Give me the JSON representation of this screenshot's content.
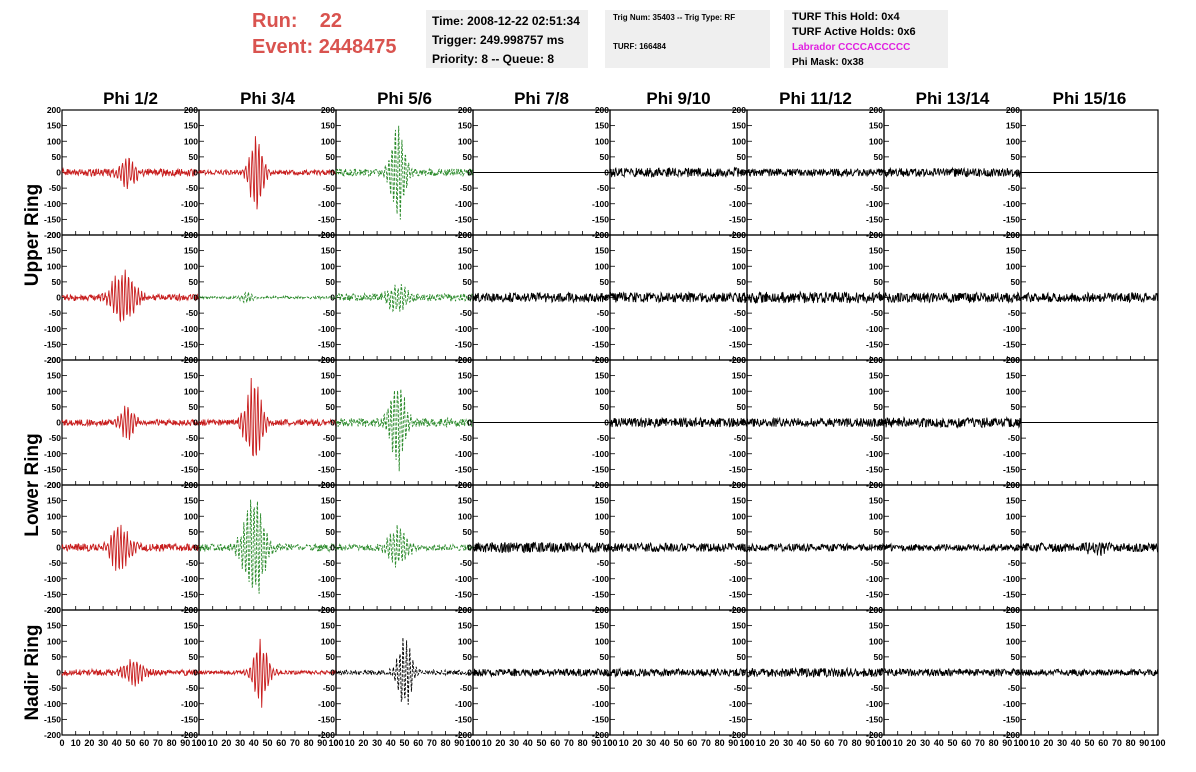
{
  "header": {
    "run_label": "Run:",
    "run_value": "22",
    "event_label": "Event:",
    "event_value": "2448475",
    "time": "Time: 2008-12-22 02:51:34",
    "trigger": "Trigger: 249.998757 ms",
    "priority": "Priority: 8 -- Queue: 8",
    "trig_num": "Trig Num: 35403 -- Trig Type: RF",
    "turf": "TURF: 166484",
    "turf_this_hold": "TURF This Hold: 0x4",
    "turf_active_holds": "TURF Active Holds: 0x6",
    "labrador": "Labrador CCCCACCCCC",
    "phi_mask": "Phi Mask: 0x38"
  },
  "colors": {
    "title": "#d9534f",
    "labrador": "#e020e0",
    "red_trace": "#c81e1e",
    "green_trace": "#2a8a2a",
    "black_trace": "#000000",
    "pane_bg": "#efefef"
  },
  "chart_data": {
    "type": "line",
    "columns": [
      "Phi 1/2",
      "Phi 3/4",
      "Phi 5/6",
      "Phi 7/8",
      "Phi 9/10",
      "Phi 11/12",
      "Phi 13/14",
      "Phi 15/16"
    ],
    "ring_labels": [
      "Upper Ring",
      "Lower Ring",
      "Nadir Ring"
    ],
    "x_ticks": [
      "0",
      "10",
      "20",
      "30",
      "40",
      "50",
      "60",
      "70",
      "80",
      "90",
      "100"
    ],
    "y_ticks": [
      "200",
      "150",
      "100",
      "50",
      "0",
      "-50",
      "-100",
      "-150",
      "-200"
    ],
    "xlim": [
      0,
      100
    ],
    "ylim": [
      -200,
      200
    ],
    "panels": [
      [
        {
          "color": "red",
          "amp": 55,
          "peak": 48,
          "width": 7,
          "noise": 12,
          "dash": false
        },
        {
          "color": "red",
          "amp": 140,
          "peak": 42,
          "width": 6,
          "noise": 8,
          "dash": false
        },
        {
          "color": "green",
          "amp": 185,
          "peak": 45,
          "width": 6,
          "noise": 12,
          "dash": true
        },
        {
          "color": "black",
          "amp": 0,
          "peak": 50,
          "width": 1,
          "noise": 0,
          "dash": false
        },
        {
          "color": "black",
          "amp": 0,
          "peak": 50,
          "width": 1,
          "noise": 15,
          "dash": false
        },
        {
          "color": "black",
          "amp": 0,
          "peak": 50,
          "width": 1,
          "noise": 12,
          "dash": false
        },
        {
          "color": "black",
          "amp": 0,
          "peak": 50,
          "width": 1,
          "noise": 14,
          "dash": false
        },
        {
          "color": "black",
          "amp": 0,
          "peak": 50,
          "width": 1,
          "noise": 0,
          "dash": false
        }
      ],
      [
        {
          "color": "red",
          "amp": 95,
          "peak": 45,
          "width": 10,
          "noise": 10,
          "dash": false
        },
        {
          "color": "green",
          "amp": 20,
          "peak": 35,
          "width": 5,
          "noise": 4,
          "dash": true
        },
        {
          "color": "green",
          "amp": 60,
          "peak": 45,
          "width": 8,
          "noise": 12,
          "dash": true
        },
        {
          "color": "black",
          "amp": 0,
          "peak": 50,
          "width": 1,
          "noise": 15,
          "dash": false
        },
        {
          "color": "black",
          "amp": 0,
          "peak": 50,
          "width": 1,
          "noise": 16,
          "dash": false
        },
        {
          "color": "black",
          "amp": 0,
          "peak": 50,
          "width": 1,
          "noise": 18,
          "dash": false
        },
        {
          "color": "black",
          "amp": 0,
          "peak": 50,
          "width": 1,
          "noise": 16,
          "dash": false
        },
        {
          "color": "black",
          "amp": 0,
          "peak": 50,
          "width": 1,
          "noise": 15,
          "dash": false
        }
      ],
      [
        {
          "color": "red",
          "amp": 60,
          "peak": 48,
          "width": 6,
          "noise": 10,
          "dash": false
        },
        {
          "color": "red",
          "amp": 160,
          "peak": 40,
          "width": 7,
          "noise": 10,
          "dash": false
        },
        {
          "color": "green",
          "amp": 150,
          "peak": 45,
          "width": 7,
          "noise": 14,
          "dash": true
        },
        {
          "color": "black",
          "amp": 0,
          "peak": 50,
          "width": 1,
          "noise": 0,
          "dash": false
        },
        {
          "color": "black",
          "amp": 0,
          "peak": 50,
          "width": 1,
          "noise": 15,
          "dash": false
        },
        {
          "color": "black",
          "amp": 0,
          "peak": 50,
          "width": 1,
          "noise": 14,
          "dash": false
        },
        {
          "color": "black",
          "amp": 0,
          "peak": 50,
          "width": 1,
          "noise": 16,
          "dash": false
        },
        {
          "color": "black",
          "amp": 0,
          "peak": 50,
          "width": 1,
          "noise": 0,
          "dash": false
        }
      ],
      [
        {
          "color": "red",
          "amp": 85,
          "peak": 42,
          "width": 8,
          "noise": 12,
          "dash": false
        },
        {
          "color": "green",
          "amp": 180,
          "peak": 40,
          "width": 9,
          "noise": 12,
          "dash": true
        },
        {
          "color": "green",
          "amp": 75,
          "peak": 45,
          "width": 8,
          "noise": 10,
          "dash": true
        },
        {
          "color": "black",
          "amp": 0,
          "peak": 50,
          "width": 1,
          "noise": 16,
          "dash": false
        },
        {
          "color": "black",
          "amp": 0,
          "peak": 50,
          "width": 1,
          "noise": 14,
          "dash": false
        },
        {
          "color": "black",
          "amp": 0,
          "peak": 50,
          "width": 1,
          "noise": 12,
          "dash": false
        },
        {
          "color": "black",
          "amp": 0,
          "peak": 50,
          "width": 1,
          "noise": 11,
          "dash": false
        },
        {
          "color": "black",
          "amp": 20,
          "peak": 55,
          "width": 8,
          "noise": 14,
          "dash": false
        }
      ],
      [
        {
          "color": "red",
          "amp": 45,
          "peak": 52,
          "width": 9,
          "noise": 10,
          "dash": false
        },
        {
          "color": "red",
          "amp": 110,
          "peak": 45,
          "width": 7,
          "noise": 6,
          "dash": false
        },
        {
          "color": "black",
          "amp": 130,
          "peak": 50,
          "width": 6,
          "noise": 8,
          "dash": true
        },
        {
          "color": "black",
          "amp": 0,
          "peak": 50,
          "width": 1,
          "noise": 12,
          "dash": false
        },
        {
          "color": "black",
          "amp": 0,
          "peak": 50,
          "width": 1,
          "noise": 12,
          "dash": false
        },
        {
          "color": "black",
          "amp": 0,
          "peak": 50,
          "width": 1,
          "noise": 14,
          "dash": false
        },
        {
          "color": "black",
          "amp": 0,
          "peak": 50,
          "width": 1,
          "noise": 12,
          "dash": false
        },
        {
          "color": "black",
          "amp": 0,
          "peak": 50,
          "width": 1,
          "noise": 10,
          "dash": false
        }
      ]
    ]
  }
}
